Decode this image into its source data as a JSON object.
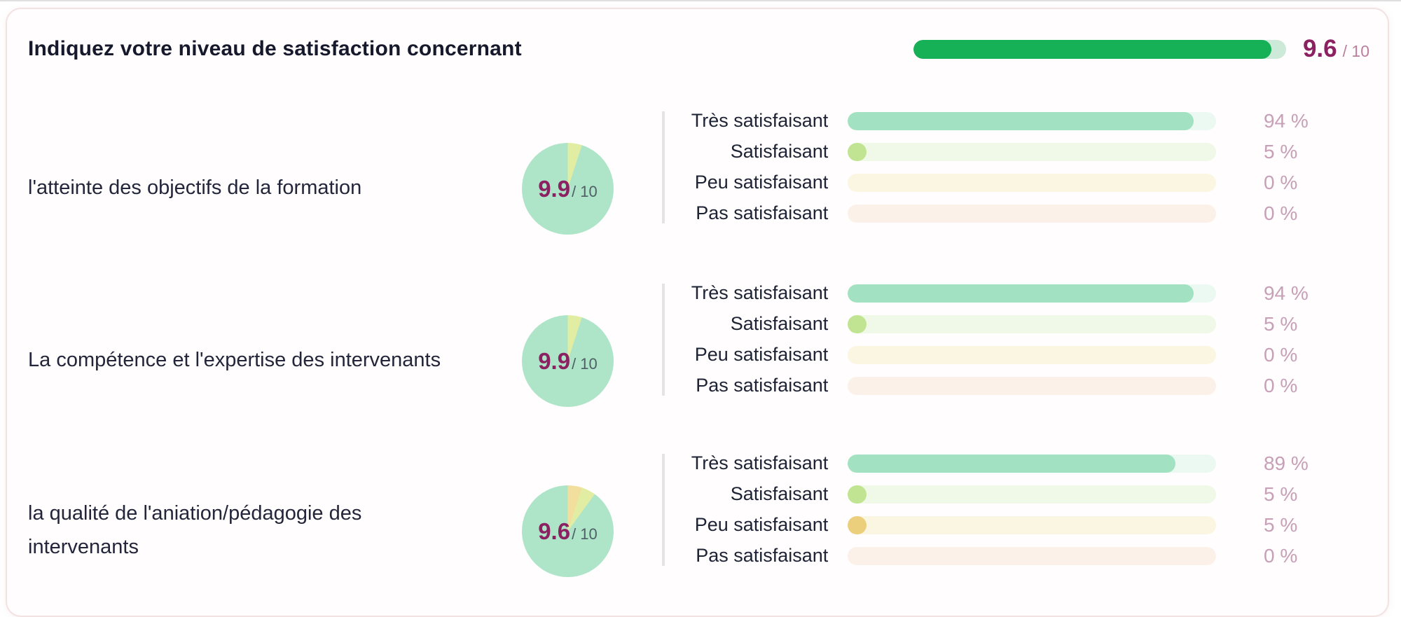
{
  "header": {
    "title": "Indiquez votre niveau de satisfaction concernant",
    "score": "9.6",
    "score_suffix": "/ 10",
    "progress_pct": 96,
    "progress_fill_color": "#16b156",
    "progress_track_color": "#cde9d7"
  },
  "colors": {
    "score_text": "#8c2162",
    "percent_text": "#c79fb7",
    "tres_fill": "#a2e2c2",
    "satisfaisant_fill": "#c0e492",
    "peu_fill": "#ebcf7c",
    "pie_mint": "#aee4c8",
    "pie_yellow_green": "#e2eda4",
    "pie_gold": "#f2df9d"
  },
  "questions": [
    {
      "label": "l'atteinte des objectifs de la formation",
      "score": "9.9",
      "score_suffix": "/ 10",
      "pie": [
        {
          "color": "#e2eda4",
          "pct": 5
        },
        {
          "color": "#aee4c8",
          "pct": 95
        }
      ],
      "answers": [
        {
          "label": "Très satisfaisant",
          "value": "94 %",
          "pct": 94
        },
        {
          "label": "Satisfaisant",
          "value": "5 %",
          "pct": 5
        },
        {
          "label": "Peu satisfaisant",
          "value": "0 %",
          "pct": 0
        },
        {
          "label": "Pas satisfaisant",
          "value": "0 %",
          "pct": 0
        }
      ]
    },
    {
      "label": "La compétence et l'expertise des intervenants",
      "score": "9.9",
      "score_suffix": "/ 10",
      "pie": [
        {
          "color": "#e2eda4",
          "pct": 5
        },
        {
          "color": "#aee4c8",
          "pct": 95
        }
      ],
      "answers": [
        {
          "label": "Très satisfaisant",
          "value": "94 %",
          "pct": 94
        },
        {
          "label": "Satisfaisant",
          "value": "5 %",
          "pct": 5
        },
        {
          "label": "Peu satisfaisant",
          "value": "0 %",
          "pct": 0
        },
        {
          "label": "Pas satisfaisant",
          "value": "0 %",
          "pct": 0
        }
      ]
    },
    {
      "label": "la qualité de l'aniation/pédagogie des intervenants",
      "score": "9.6",
      "score_suffix": "/ 10",
      "pie": [
        {
          "color": "#f2df9d",
          "pct": 5
        },
        {
          "color": "#e2eda4",
          "pct": 5
        },
        {
          "color": "#aee4c8",
          "pct": 90
        }
      ],
      "answers": [
        {
          "label": "Très satisfaisant",
          "value": "89 %",
          "pct": 89
        },
        {
          "label": "Satisfaisant",
          "value": "5 %",
          "pct": 5
        },
        {
          "label": "Peu satisfaisant",
          "value": "5 %",
          "pct": 5
        },
        {
          "label": "Pas satisfaisant",
          "value": "0 %",
          "pct": 0
        }
      ]
    }
  ],
  "chart_data": [
    {
      "type": "bar",
      "title": "Indiquez votre niveau de satisfaction concernant",
      "values": [
        9.6
      ],
      "ylim": [
        0,
        10
      ],
      "annotations": [
        "9.6 / 10"
      ]
    },
    {
      "type": "bar",
      "orientation": "horizontal",
      "title": "l'atteinte des objectifs de la formation",
      "score": "9.9 / 10",
      "categories": [
        "Très satisfaisant",
        "Satisfaisant",
        "Peu satisfaisant",
        "Pas satisfaisant"
      ],
      "values": [
        94,
        5,
        0,
        0
      ],
      "unit": "%",
      "xlim": [
        0,
        100
      ]
    },
    {
      "type": "bar",
      "orientation": "horizontal",
      "title": "La compétence et l'expertise des intervenants",
      "score": "9.9 / 10",
      "categories": [
        "Très satisfaisant",
        "Satisfaisant",
        "Peu satisfaisant",
        "Pas satisfaisant"
      ],
      "values": [
        94,
        5,
        0,
        0
      ],
      "unit": "%",
      "xlim": [
        0,
        100
      ]
    },
    {
      "type": "bar",
      "orientation": "horizontal",
      "title": "la qualité de l'aniation/pédagogie des intervenants",
      "score": "9.6 / 10",
      "categories": [
        "Très satisfaisant",
        "Satisfaisant",
        "Peu satisfaisant",
        "Pas satisfaisant"
      ],
      "values": [
        89,
        5,
        5,
        0
      ],
      "unit": "%",
      "xlim": [
        0,
        100
      ]
    }
  ]
}
